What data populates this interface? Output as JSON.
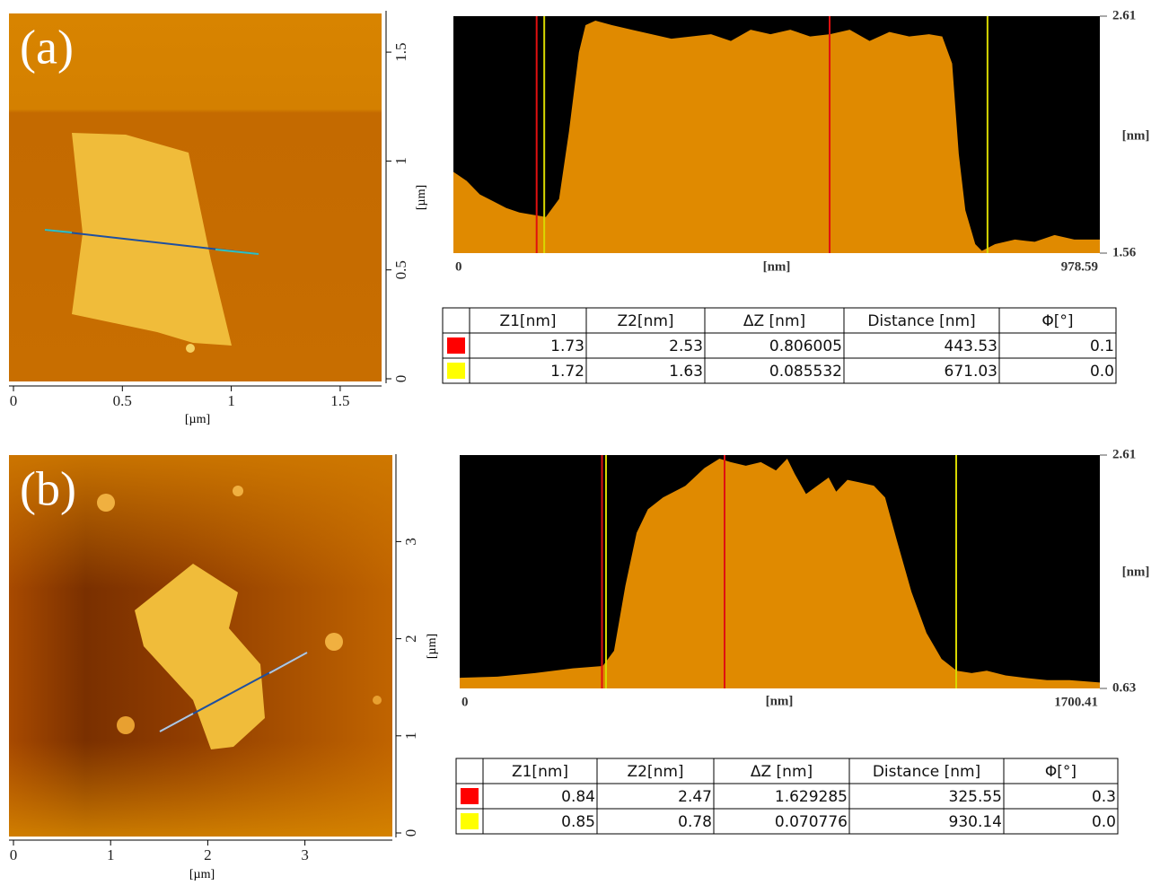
{
  "chart_data": [
    {
      "type": "image",
      "label": "(a)",
      "xlabel": "[µm]",
      "ylabel": "[µm]",
      "xlim": [
        0,
        1.69
      ],
      "ylim": [
        0,
        1.69
      ],
      "xticks": [
        0,
        0.5,
        1,
        1.5
      ],
      "yticks": [
        0,
        0.5,
        1,
        1.5
      ]
    },
    {
      "type": "area",
      "xlabel": "[nm]",
      "ylabel": "[nm]",
      "color": "#e08a00",
      "xlim": [
        0,
        978.59
      ],
      "ylim": [
        1.56,
        2.61
      ],
      "xticks": [
        0,
        978.59
      ],
      "yticks": [
        1.56,
        2.61
      ],
      "x": [
        0,
        20,
        40,
        60,
        80,
        100,
        120,
        140,
        160,
        175,
        190,
        200,
        215,
        240,
        270,
        300,
        330,
        360,
        390,
        420,
        450,
        480,
        510,
        540,
        570,
        600,
        630,
        660,
        690,
        720,
        740,
        755,
        765,
        775,
        790,
        800,
        820,
        850,
        880,
        910,
        940,
        978.59
      ],
      "values": [
        1.92,
        1.88,
        1.82,
        1.79,
        1.76,
        1.74,
        1.73,
        1.72,
        1.8,
        2.1,
        2.45,
        2.57,
        2.59,
        2.57,
        2.55,
        2.53,
        2.51,
        2.52,
        2.53,
        2.5,
        2.55,
        2.53,
        2.55,
        2.52,
        2.53,
        2.55,
        2.5,
        2.54,
        2.52,
        2.53,
        2.52,
        2.4,
        2.0,
        1.75,
        1.6,
        1.57,
        1.6,
        1.62,
        1.61,
        1.64,
        1.62,
        1.62
      ],
      "cursors": [
        {
          "color": "#e01010",
          "x": [
            126,
            569.53
          ]
        },
        {
          "color": "#d8d800",
          "x": [
            137.5,
            808.53
          ]
        }
      ]
    },
    {
      "type": "image",
      "label": "(b)",
      "xlabel": "[µm]",
      "ylabel": "[µm]",
      "xlim": [
        0,
        3.9
      ],
      "ylim": [
        0,
        3.9
      ],
      "xticks": [
        0,
        1,
        2,
        3
      ],
      "yticks": [
        0,
        1,
        2,
        3
      ]
    },
    {
      "type": "area",
      "xlabel": "[nm]",
      "ylabel": "[nm]",
      "color": "#e08a00",
      "xlim": [
        0,
        1700.41
      ],
      "ylim": [
        0.63,
        2.61
      ],
      "xticks": [
        0,
        1700.41
      ],
      "yticks": [
        0.63,
        2.61
      ],
      "x": [
        0,
        100,
        200,
        300,
        380,
        410,
        440,
        470,
        500,
        540,
        600,
        650,
        690,
        720,
        760,
        800,
        840,
        870,
        890,
        920,
        950,
        980,
        1000,
        1030,
        1060,
        1100,
        1130,
        1160,
        1200,
        1240,
        1280,
        1320,
        1360,
        1400,
        1450,
        1500,
        1560,
        1620,
        1700.41
      ],
      "values": [
        0.72,
        0.73,
        0.76,
        0.8,
        0.82,
        0.95,
        1.5,
        1.95,
        2.15,
        2.25,
        2.35,
        2.5,
        2.58,
        2.55,
        2.52,
        2.55,
        2.48,
        2.58,
        2.45,
        2.28,
        2.35,
        2.42,
        2.3,
        2.4,
        2.38,
        2.35,
        2.25,
        1.9,
        1.45,
        1.1,
        0.88,
        0.78,
        0.76,
        0.78,
        0.74,
        0.72,
        0.7,
        0.7,
        0.68
      ],
      "cursors": [
        {
          "color": "#e01010",
          "x": [
            378,
            703.55
          ]
        },
        {
          "color": "#d8d800",
          "x": [
            388.7,
            1318.84
          ]
        }
      ]
    }
  ],
  "tables": [
    {
      "header": [
        "Z1[nm]",
        "Z2[nm]",
        "ΔZ [nm]",
        "Distance [nm]",
        "Φ[°]"
      ],
      "rows": [
        {
          "color": "#ff0000",
          "cells": [
            "1.73",
            "2.53",
            "0.806005",
            "443.53",
            "0.1"
          ]
        },
        {
          "color": "#ffff00",
          "cells": [
            "1.72",
            "1.63",
            "0.085532",
            "671.03",
            "0.0"
          ]
        }
      ]
    },
    {
      "header": [
        "Z1[nm]",
        "Z2[nm]",
        "ΔZ [nm]",
        "Distance [nm]",
        "Φ[°]"
      ],
      "rows": [
        {
          "color": "#ff0000",
          "cells": [
            "0.84",
            "2.47",
            "1.629285",
            "325.55",
            "0.3"
          ]
        },
        {
          "color": "#ffff00",
          "cells": [
            "0.85",
            "0.78",
            "0.070776",
            "930.14",
            "0.0"
          ]
        }
      ]
    }
  ]
}
